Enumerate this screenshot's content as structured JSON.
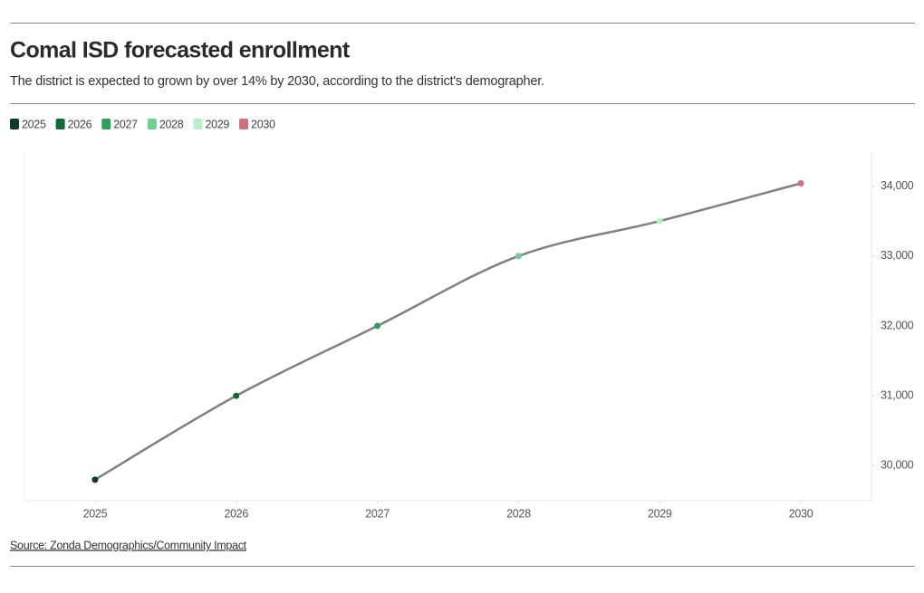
{
  "chart_data": {
    "type": "line",
    "title": "Comal ISD forecasted enrollment",
    "subtitle": "The district is expected to grown by over 14% by 2030, according to the district's demographer.",
    "source": "Source: Zonda Demographics/Community Impact",
    "x": [
      2025,
      2026,
      2027,
      2028,
      2029,
      2030
    ],
    "values": [
      29800,
      31000,
      32000,
      33000,
      33500,
      34040
    ],
    "line_color": "#808080",
    "point_colors": [
      "#0a3d1f",
      "#0e6b35",
      "#2ea05a",
      "#6fcf8f",
      "#b5f0c8",
      "#d07078"
    ],
    "xlim": [
      2024.5,
      2030.5
    ],
    "xticks": [
      2025,
      2026,
      2027,
      2028,
      2029,
      2030
    ],
    "ylim": [
      29500,
      34500
    ],
    "yticks": [
      {
        "value": 30000,
        "label": "30,000"
      },
      {
        "value": 31000,
        "label": "31,000"
      },
      {
        "value": 32000,
        "label": "32,000"
      },
      {
        "value": 33000,
        "label": "33,000"
      },
      {
        "value": 34000,
        "label": "34,000"
      }
    ],
    "y_axis_side": "right",
    "legend": true
  }
}
